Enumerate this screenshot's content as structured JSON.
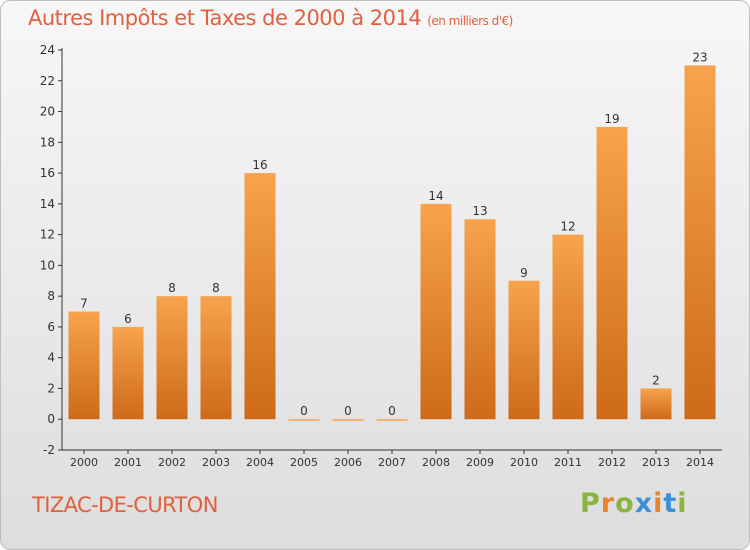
{
  "header": {
    "title": "Autres Impôts et Taxes de 2000 à 2014",
    "unit": "(en milliers d'€)"
  },
  "footer": {
    "commune": "TIZAC-DE-CURTON",
    "brand": "Proxiti"
  },
  "colors": {
    "title": "#e0603f",
    "bar_light": "#f7a34d",
    "bar_dark": "#cd6a1a",
    "brand_letters": [
      "#8cb43c",
      "#e8852a",
      "#8cb43c",
      "#3c8fd6",
      "#e8852a",
      "#3c8fd6",
      "#8cb43c"
    ]
  },
  "chart_data": {
    "type": "bar",
    "categories": [
      "2000",
      "2001",
      "2002",
      "2003",
      "2004",
      "2005",
      "2006",
      "2007",
      "2008",
      "2009",
      "2010",
      "2011",
      "2012",
      "2013",
      "2014"
    ],
    "values": [
      7,
      6,
      8,
      8,
      16,
      0,
      0,
      0,
      14,
      13,
      9,
      12,
      19,
      2,
      23
    ],
    "data_labels": [
      "7",
      "6",
      "8",
      "8",
      "16",
      "0",
      "0",
      "0",
      "14",
      "13",
      "9",
      "12",
      "19",
      "2",
      "23"
    ],
    "title": "Autres Impôts et Taxes de 2000 à 2014",
    "ylim": [
      -2,
      24
    ],
    "yticks": [
      -2,
      0,
      2,
      4,
      6,
      8,
      10,
      12,
      14,
      16,
      18,
      20,
      22,
      24
    ],
    "ytick_labels": [
      "-2",
      "0",
      "2",
      "4",
      "6",
      "8",
      "10",
      "12",
      "14",
      "16",
      "18",
      "20",
      "22",
      "24"
    ],
    "grid": false,
    "legend": "none"
  }
}
